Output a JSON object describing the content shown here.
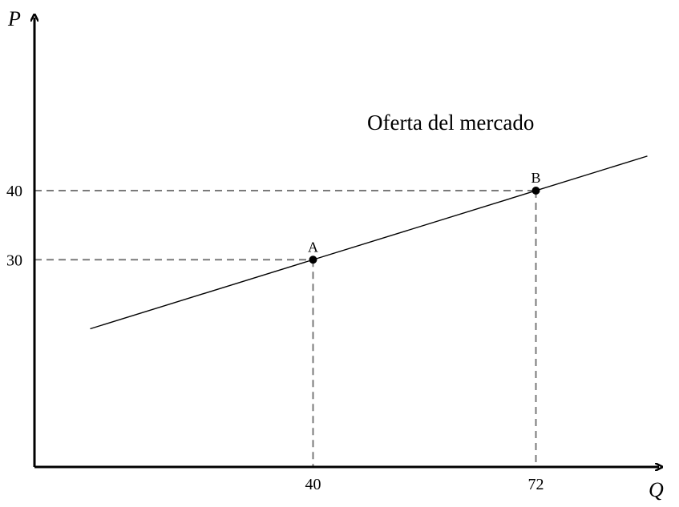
{
  "chart_data": {
    "type": "line",
    "xlabel": "Q",
    "ylabel": "P",
    "xlim": [
      0,
      100
    ],
    "ylim": [
      0,
      80
    ],
    "grid": false,
    "series": [
      {
        "name": "Oferta del mercado",
        "x": [
          8,
          88
        ],
        "y": [
          20,
          45
        ]
      }
    ],
    "points": [
      {
        "label": "A",
        "x": 40,
        "y": 30
      },
      {
        "label": "B",
        "x": 72,
        "y": 40
      }
    ],
    "xticks": [
      {
        "value": 40,
        "label": "40"
      },
      {
        "value": 72,
        "label": "72"
      }
    ],
    "yticks": [
      {
        "value": 30,
        "label": "30"
      },
      {
        "value": 40,
        "label": "40"
      }
    ],
    "colors": {
      "axis": "#000000",
      "curve": "#000000",
      "guides": "#7a7a7a"
    }
  }
}
